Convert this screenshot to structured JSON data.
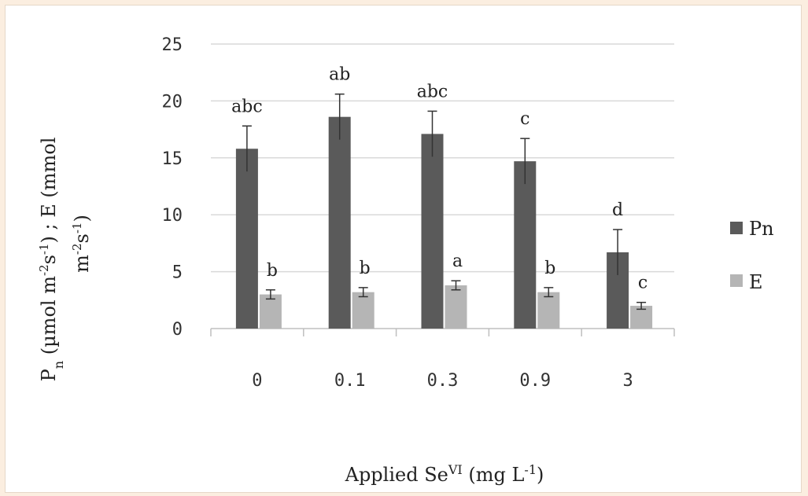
{
  "chart_data": {
    "type": "bar",
    "categories": [
      "0",
      "0.1",
      "0.3",
      "0.9",
      "3"
    ],
    "series": [
      {
        "name": "Pn",
        "color": "#5a5a5a",
        "values": [
          15.8,
          18.6,
          17.1,
          14.7,
          6.7
        ],
        "errors": [
          2.0,
          2.0,
          2.0,
          2.0,
          2.0
        ],
        "labels": [
          "abc",
          "ab",
          "abc",
          "c",
          "d"
        ]
      },
      {
        "name": "E",
        "color": "#b5b5b5",
        "values": [
          3.0,
          3.2,
          3.8,
          3.2,
          2.0
        ],
        "errors": [
          0.4,
          0.4,
          0.4,
          0.4,
          0.3
        ],
        "labels": [
          "b",
          "b",
          "a",
          "b",
          "c"
        ]
      }
    ],
    "yticks": [
      "0",
      "5",
      "10",
      "15",
      "20",
      "25"
    ],
    "ylim": [
      0,
      25
    ],
    "ylabel_line1": "P",
    "ylabel_sub": "n",
    "ylabel_line1_rest": " (µmol m",
    "ylabel_sup1": "-2",
    "ylabel_mid1": "s",
    "ylabel_sup2": "-1",
    "ylabel_mid2": ") ; E (mmol",
    "ylabel_line2": "m",
    "ylabel_sup3": "-2",
    "ylabel_mid3": "s",
    "ylabel_sup4": "-1",
    "ylabel_end": ")",
    "xlabel_main": "Applied Se",
    "xlabel_sup": "VI",
    "xlabel_mid": " (mg L",
    "xlabel_sup2": "-1",
    "xlabel_end": ")",
    "grid": true,
    "legend_position": "right"
  }
}
